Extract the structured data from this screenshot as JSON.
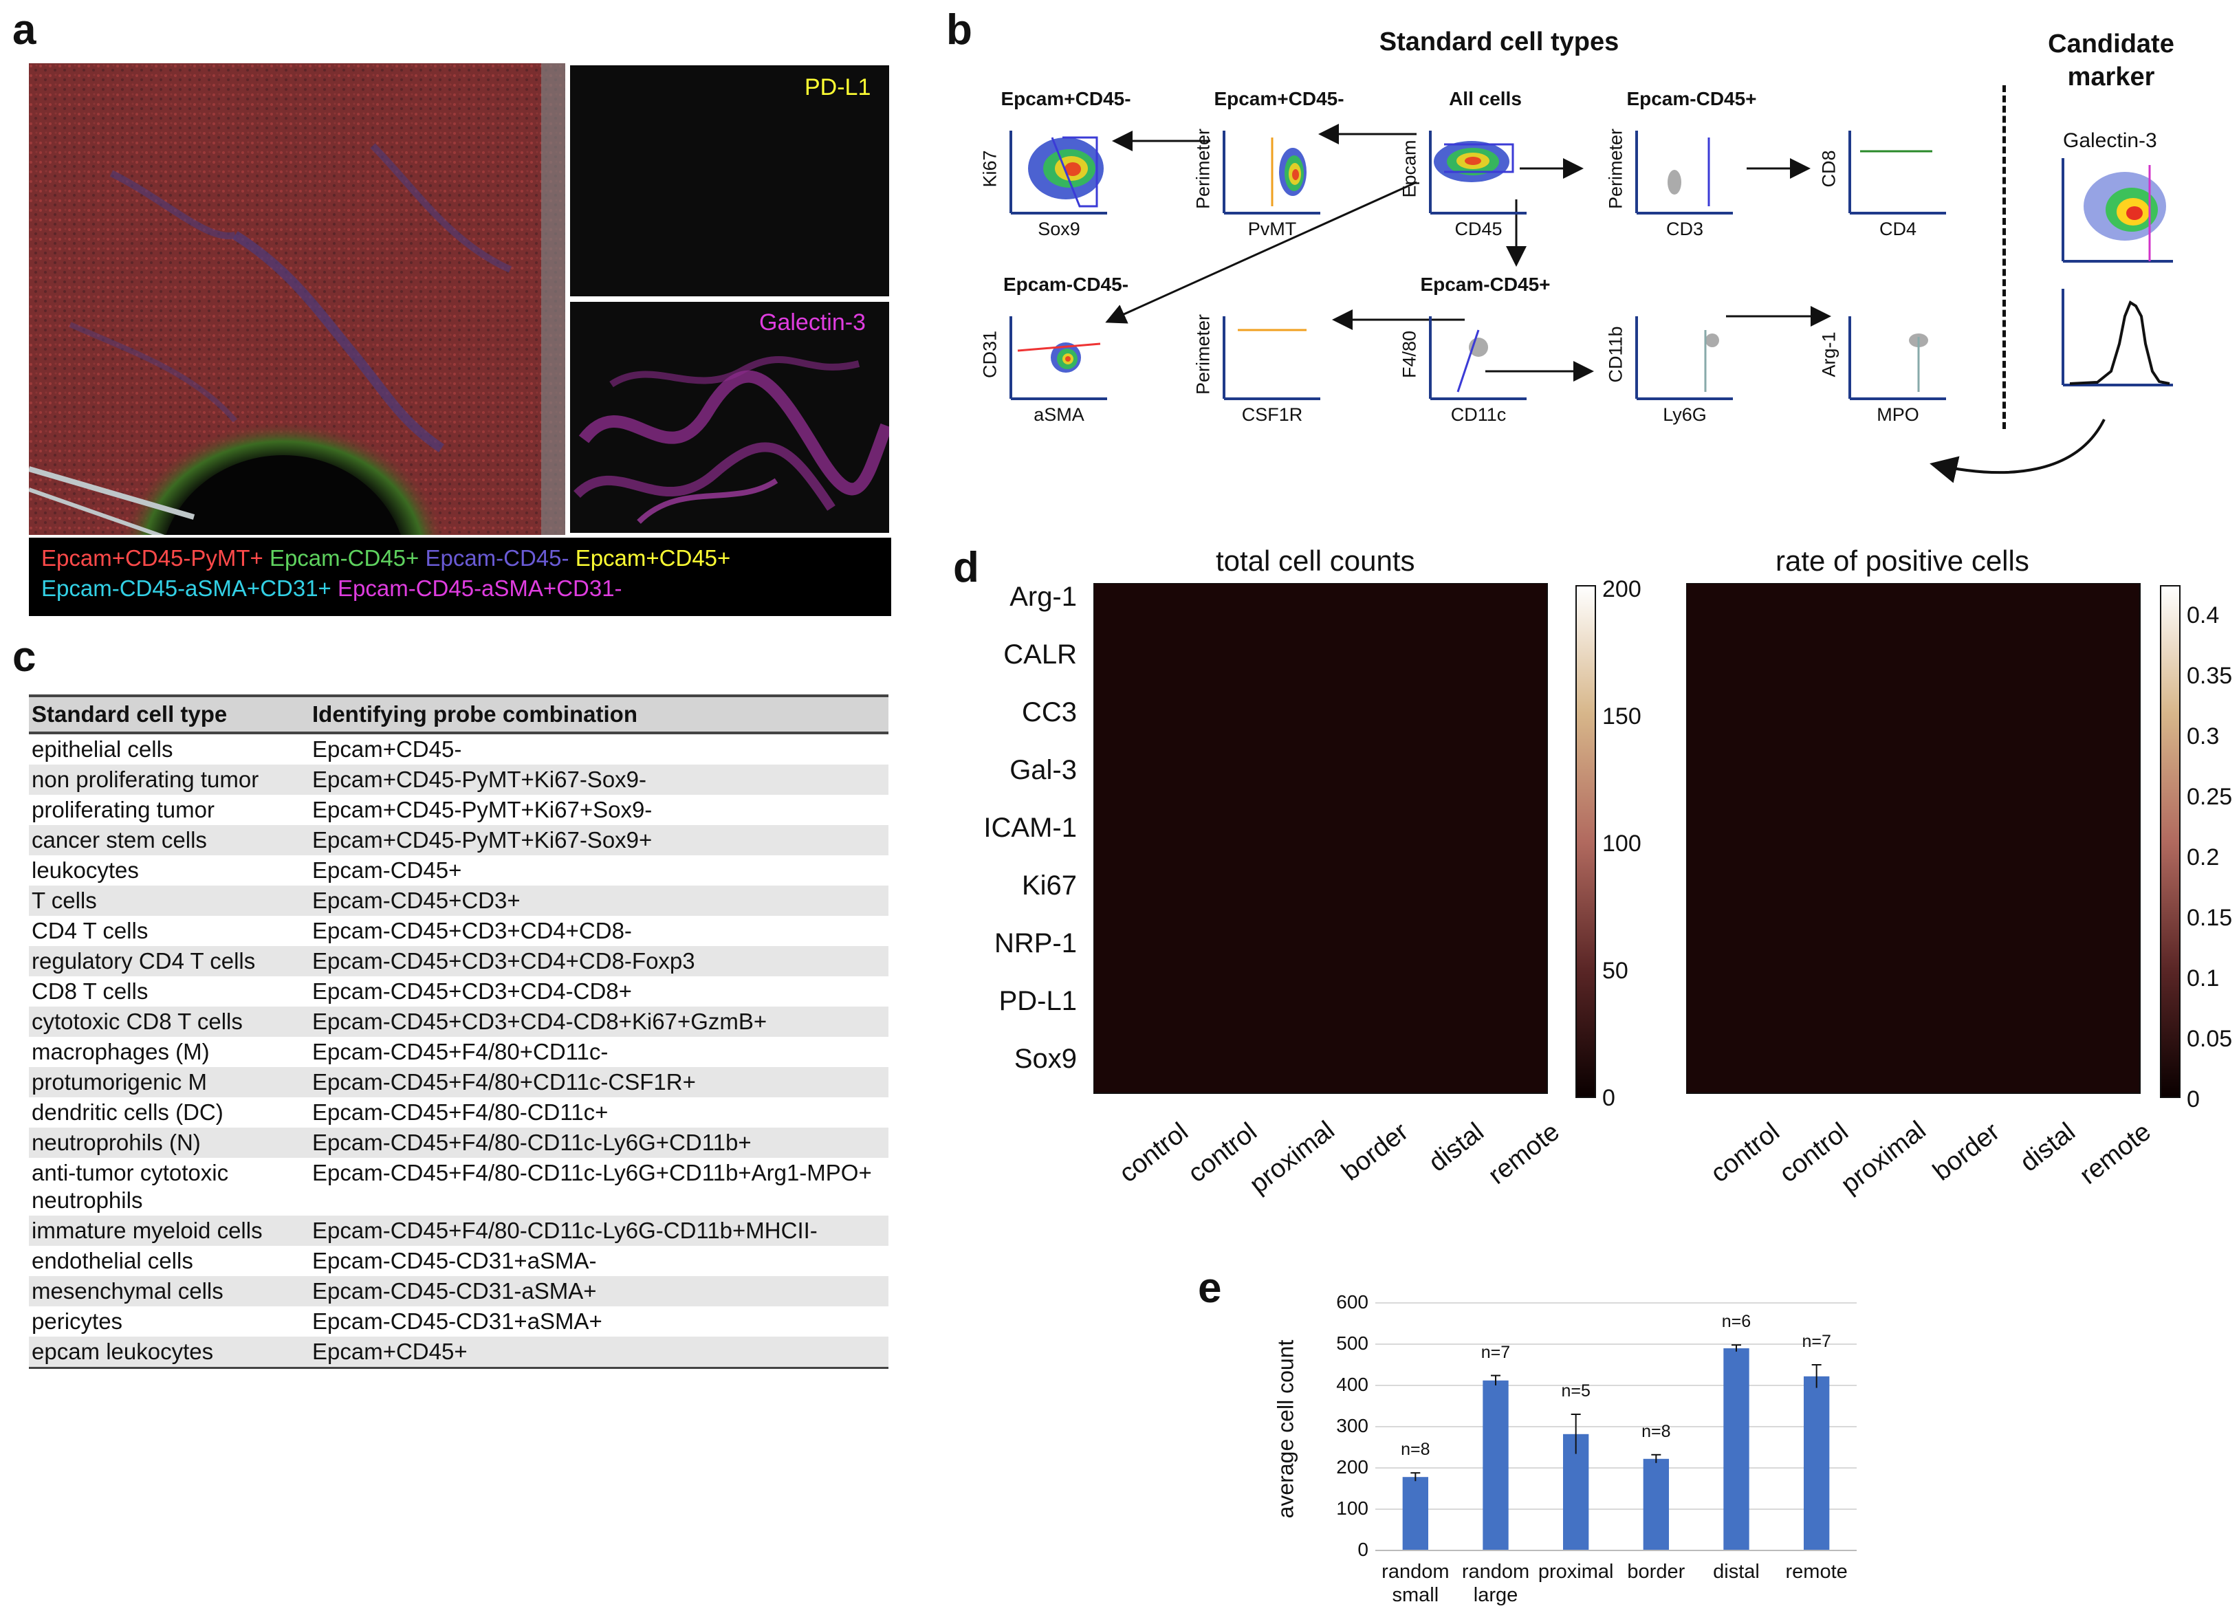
{
  "panels": {
    "a": "a",
    "b": "b",
    "c": "c",
    "d": "d",
    "e": "e"
  },
  "panel_a": {
    "pdl1_label": "PD-L1",
    "galectin_label": "Galectin-3",
    "legend_line1": [
      {
        "text": "Epcam+CD45-PyMT+",
        "color": "#ff4a4a"
      },
      {
        "text": "Epcam-CD45+",
        "color": "#5fd35f"
      },
      {
        "text": "Epcam-CD45-",
        "color": "#6a5bd6"
      },
      {
        "text": "Epcam+CD45+",
        "color": "#ffff33"
      }
    ],
    "legend_line2": [
      {
        "text": "Epcam-CD45-aSMA+CD31+",
        "color": "#33d1e6"
      },
      {
        "text": "Epcam-CD45-aSMA+CD31-",
        "color": "#e03de0"
      }
    ]
  },
  "panel_b": {
    "title": "Standard cell types",
    "candidate_title": "Candidate\nmarker",
    "galectin": "Galectin-3",
    "plots": [
      {
        "key": "p1",
        "title": "Epcam+CD45-",
        "x": "Sox9",
        "y": "Ki67"
      },
      {
        "key": "p2",
        "title": "Epcam+CD45-",
        "x": "PvMT",
        "y": "Perimeter"
      },
      {
        "key": "p3",
        "title": "All cells",
        "x": "CD45",
        "y": "Epcam"
      },
      {
        "key": "p4",
        "title": "Epcam-CD45+",
        "x": "CD3",
        "y": "Perimeter"
      },
      {
        "key": "p5",
        "title": "",
        "x": "CD4",
        "y": "CD8"
      },
      {
        "key": "p6",
        "title": "Epcam-CD45-",
        "x": "aSMA",
        "y": "CD31"
      },
      {
        "key": "p7",
        "title": "",
        "x": "CSF1R",
        "y": "Perimeter"
      },
      {
        "key": "p8",
        "title": "Epcam-CD45+",
        "x": "CD11c",
        "y": "F4/80"
      },
      {
        "key": "p9",
        "title": "",
        "x": "Ly6G",
        "y": "CD11b"
      },
      {
        "key": "p10",
        "title": "",
        "x": "MPO",
        "y": "Arg-1"
      }
    ]
  },
  "panel_c": {
    "headers": [
      "Standard cell type",
      "Identifying probe combination"
    ],
    "rows": [
      [
        "epithelial cells",
        "Epcam+CD45-"
      ],
      [
        "non proliferating tumor",
        "Epcam+CD45-PyMT+Ki67-Sox9-"
      ],
      [
        "proliferating tumor",
        "Epcam+CD45-PyMT+Ki67+Sox9-"
      ],
      [
        "cancer stem cells",
        "Epcam+CD45-PyMT+Ki67-Sox9+"
      ],
      [
        "leukocytes",
        "Epcam-CD45+"
      ],
      [
        "T cells",
        "Epcam-CD45+CD3+"
      ],
      [
        "CD4 T cells",
        "Epcam-CD45+CD3+CD4+CD8-"
      ],
      [
        "regulatory CD4 T cells",
        "Epcam-CD45+CD3+CD4+CD8-Foxp3"
      ],
      [
        "CD8 T cells",
        "Epcam-CD45+CD3+CD4-CD8+"
      ],
      [
        "cytotoxic CD8 T cells",
        "Epcam-CD45+CD3+CD4-CD8+Ki67+GzmB+"
      ],
      [
        "macrophages (M)",
        "Epcam-CD45+F4/80+CD11c-"
      ],
      [
        "protumorigenic M",
        "Epcam-CD45+F4/80+CD11c-CSF1R+"
      ],
      [
        "dendritic cells (DC)",
        "Epcam-CD45+F4/80-CD11c+"
      ],
      [
        "neutroprohils (N)",
        "Epcam-CD45+F4/80-CD11c-Ly6G+CD11b+"
      ],
      [
        "anti-tumor cytotoxic neutrophils",
        "Epcam-CD45+F4/80-CD11c-Ly6G+CD11b+Arg1-MPO+"
      ],
      [
        "immature myeloid cells",
        "Epcam-CD45+F4/80-CD11c-Ly6G-CD11b+MHCII-"
      ],
      [
        "endothelial cells",
        "Epcam-CD45-CD31+aSMA-"
      ],
      [
        "mesenchymal cells",
        "Epcam-CD45-CD31-aSMA+"
      ],
      [
        "pericytes",
        "Epcam-CD45-CD31+aSMA+"
      ],
      [
        "epcam leukocytes",
        "Epcam+CD45+"
      ]
    ]
  },
  "panel_d": {
    "left_title": "total cell counts",
    "right_title": "rate of positive cells",
    "rows": [
      "Arg-1",
      "CALR",
      "CC3",
      "Gal-3",
      "ICAM-1",
      "Ki67",
      "NRP-1",
      "PD-L1",
      "Sox9"
    ],
    "columns": [
      "control",
      "control",
      "proximal",
      "border",
      "distal",
      "remote"
    ],
    "left_colorbar": [
      "200",
      "150",
      "100",
      "50",
      "0"
    ],
    "right_colorbar": [
      "0.4",
      "0.35",
      "0.3",
      "0.25",
      "0.2",
      "0.15",
      "0.1",
      "0.05",
      "0"
    ]
  },
  "chart_data": {
    "type": "bar",
    "title": "",
    "xlabel": "",
    "ylabel": "average cell count",
    "ylim": [
      0,
      600
    ],
    "yticks": [
      "0",
      "100",
      "200",
      "300",
      "400",
      "500",
      "600"
    ],
    "categories": [
      "random small",
      "random large",
      "proximal",
      "border",
      "distal",
      "remote"
    ],
    "values": [
      178,
      412,
      282,
      222,
      490,
      422
    ],
    "errors": [
      10,
      12,
      48,
      10,
      8,
      28
    ],
    "n_labels": [
      "n=8",
      "n=7",
      "n=5",
      "n=8",
      "n=6",
      "n=7"
    ],
    "grid": true,
    "bar_color": "#4472c4"
  }
}
